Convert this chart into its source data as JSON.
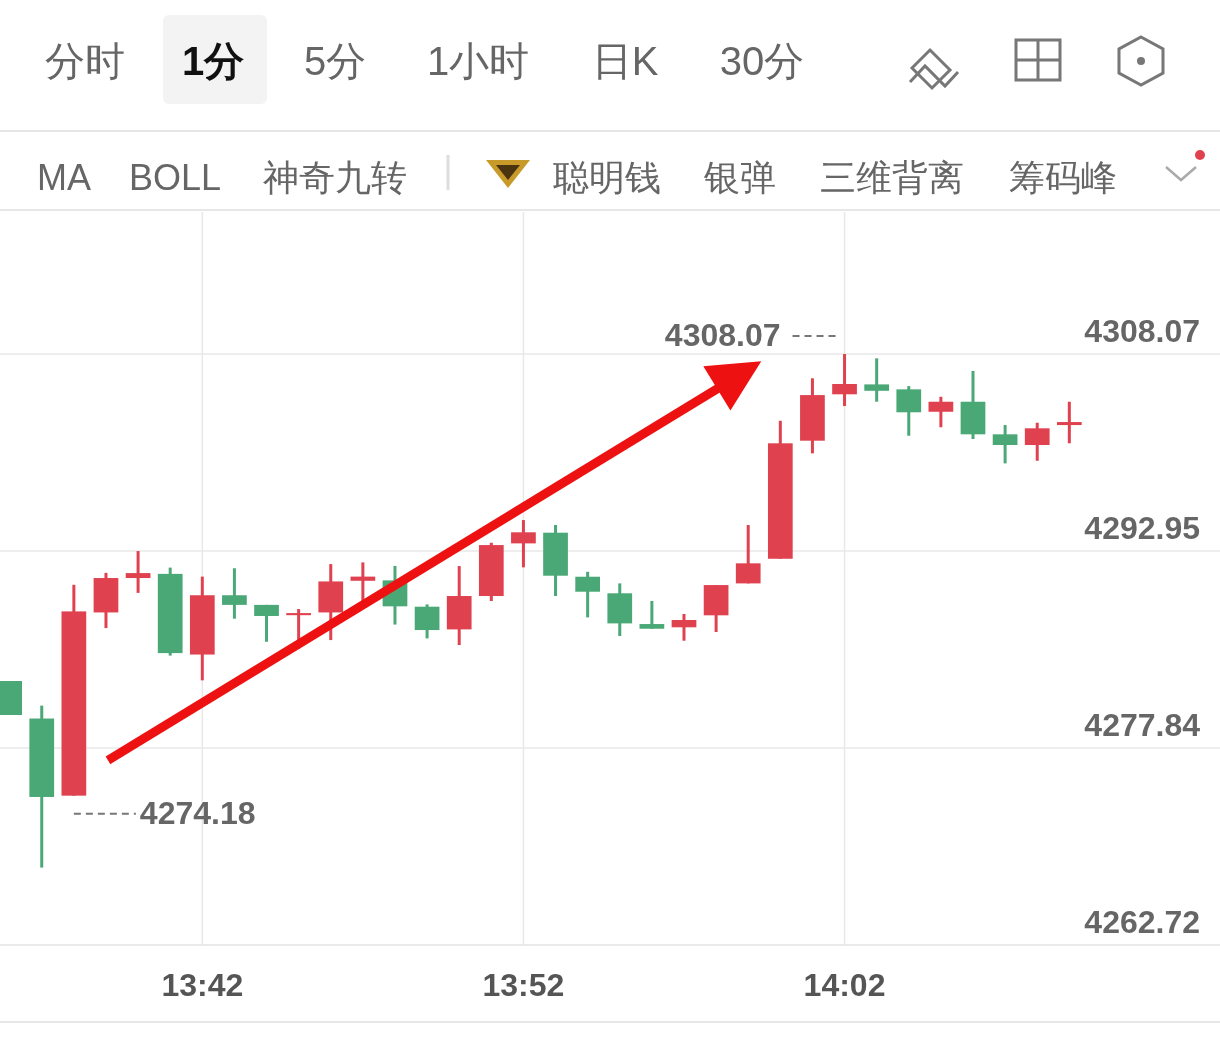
{
  "chart_data": {
    "type": "candlestick",
    "annotations": [
      "分时",
      "1分",
      "5分",
      "1小时",
      "日K",
      "30分",
      "MA",
      "BOLL",
      "神奇九转",
      "聪明钱",
      "银弹",
      "三维背离",
      "筹码峰",
      {
        "text": "4308.07",
        "x": 14.033333,
        "y": 4308.07
      },
      {
        "text": "4274.18",
        "x": 13.633333,
        "y": 4274.18
      }
    ],
    "x": [
      13.6,
      13.616667,
      13.633333,
      13.65,
      13.666667,
      13.683333,
      13.7,
      13.716667,
      13.733333,
      13.75,
      13.766667,
      13.783333,
      13.8,
      13.816667,
      13.833333,
      13.85,
      13.866667,
      13.883333,
      13.9,
      13.916667,
      13.933333,
      13.95,
      13.966667,
      13.983333,
      14.0,
      14.016667,
      14.033333,
      14.05,
      14.066667,
      14.083333,
      14.1,
      14.116667,
      14.133333,
      14.15
    ],
    "ohlc": [
      [
        4282.98,
        4282.98,
        4280.37,
        4280.37
      ],
      [
        4280.1,
        4281.09,
        4268.66,
        4274.08
      ],
      [
        4274.18,
        4290.36,
        4274.18,
        4288.32
      ],
      [
        4288.24,
        4291.28,
        4287.04,
        4290.88
      ],
      [
        4290.88,
        4292.95,
        4289.74,
        4291.26
      ],
      [
        4291.2,
        4291.68,
        4284.93,
        4285.12
      ],
      [
        4285.01,
        4290.99,
        4283.03,
        4289.56
      ],
      [
        4289.56,
        4291.63,
        4287.76,
        4288.82
      ],
      [
        4288.82,
        4288.82,
        4285.99,
        4287.97
      ],
      [
        4288.03,
        4288.5,
        4285.46,
        4288.19
      ],
      [
        4288.24,
        4291.95,
        4286.12,
        4290.62
      ],
      [
        4290.67,
        4292.08,
        4288.98,
        4290.99
      ],
      [
        4290.7,
        4291.81,
        4287.31,
        4288.71
      ],
      [
        4288.68,
        4288.86,
        4286.25,
        4286.89
      ],
      [
        4286.94,
        4291.8,
        4285.74,
        4289.5
      ],
      [
        4289.5,
        4293.59,
        4289.12,
        4293.41
      ],
      [
        4293.54,
        4295.33,
        4291.7,
        4294.39
      ],
      [
        4294.36,
        4294.95,
        4289.5,
        4291.06
      ],
      [
        4290.98,
        4291.36,
        4287.86,
        4289.83
      ],
      [
        4289.71,
        4290.47,
        4286.43,
        4287.4
      ],
      [
        4287.35,
        4289.12,
        4286.99,
        4286.99
      ],
      [
        4287.1,
        4288.12,
        4286.07,
        4287.66
      ],
      [
        4288.02,
        4290.34,
        4286.74,
        4290.34
      ],
      [
        4290.47,
        4294.95,
        4290.47,
        4292.01
      ],
      [
        4292.36,
        4302.95,
        4292.36,
        4301.22
      ],
      [
        4301.42,
        4306.21,
        4300.45,
        4304.92
      ],
      [
        4304.98,
        4308.07,
        4304.08,
        4305.77
      ],
      [
        4305.74,
        4307.74,
        4304.41,
        4305.25
      ],
      [
        4305.36,
        4305.61,
        4301.8,
        4303.6
      ],
      [
        4303.64,
        4304.79,
        4302.45,
        4304.41
      ],
      [
        4304.41,
        4306.77,
        4301.55,
        4301.91
      ],
      [
        4301.91,
        4302.62,
        4299.68,
        4301.09
      ],
      [
        4301.09,
        4302.8,
        4299.88,
        4302.37
      ],
      [
        4302.62,
        4304.41,
        4301.22,
        4302.85
      ]
    ],
    "colors": [
      "#4aa876",
      "#4aa876",
      "#e0414f",
      "#e0414f",
      "#e0414f",
      "#4aa876",
      "#e0414f",
      "#4aa876",
      "#4aa876",
      "#e0414f",
      "#e0414f",
      "#e0414f",
      "#4aa876",
      "#4aa876",
      "#e0414f",
      "#e0414f",
      "#e0414f",
      "#4aa876",
      "#4aa876",
      "#4aa876",
      "#4aa876",
      "#e0414f",
      "#e0414f",
      "#e0414f",
      "#e0414f",
      "#e0414f",
      "#e0414f",
      "#4aa876",
      "#4aa876",
      "#e0414f",
      "#4aa876",
      "#4aa876",
      "#e0414f",
      "#e0414f"
    ],
    "xlim": [
      13.595,
      14.2282
    ],
    "xticks": [
      {
        "value": 13.7,
        "label": "13:42"
      },
      {
        "value": 13.866667,
        "label": "13:52"
      },
      {
        "value": 14.033333,
        "label": "14:02"
      }
    ],
    "ylim": [
      4262.72,
      4318.97
    ],
    "yticks": [
      4262.72,
      4277.84,
      4292.95,
      4308.07
    ],
    "grid": true
  }
}
